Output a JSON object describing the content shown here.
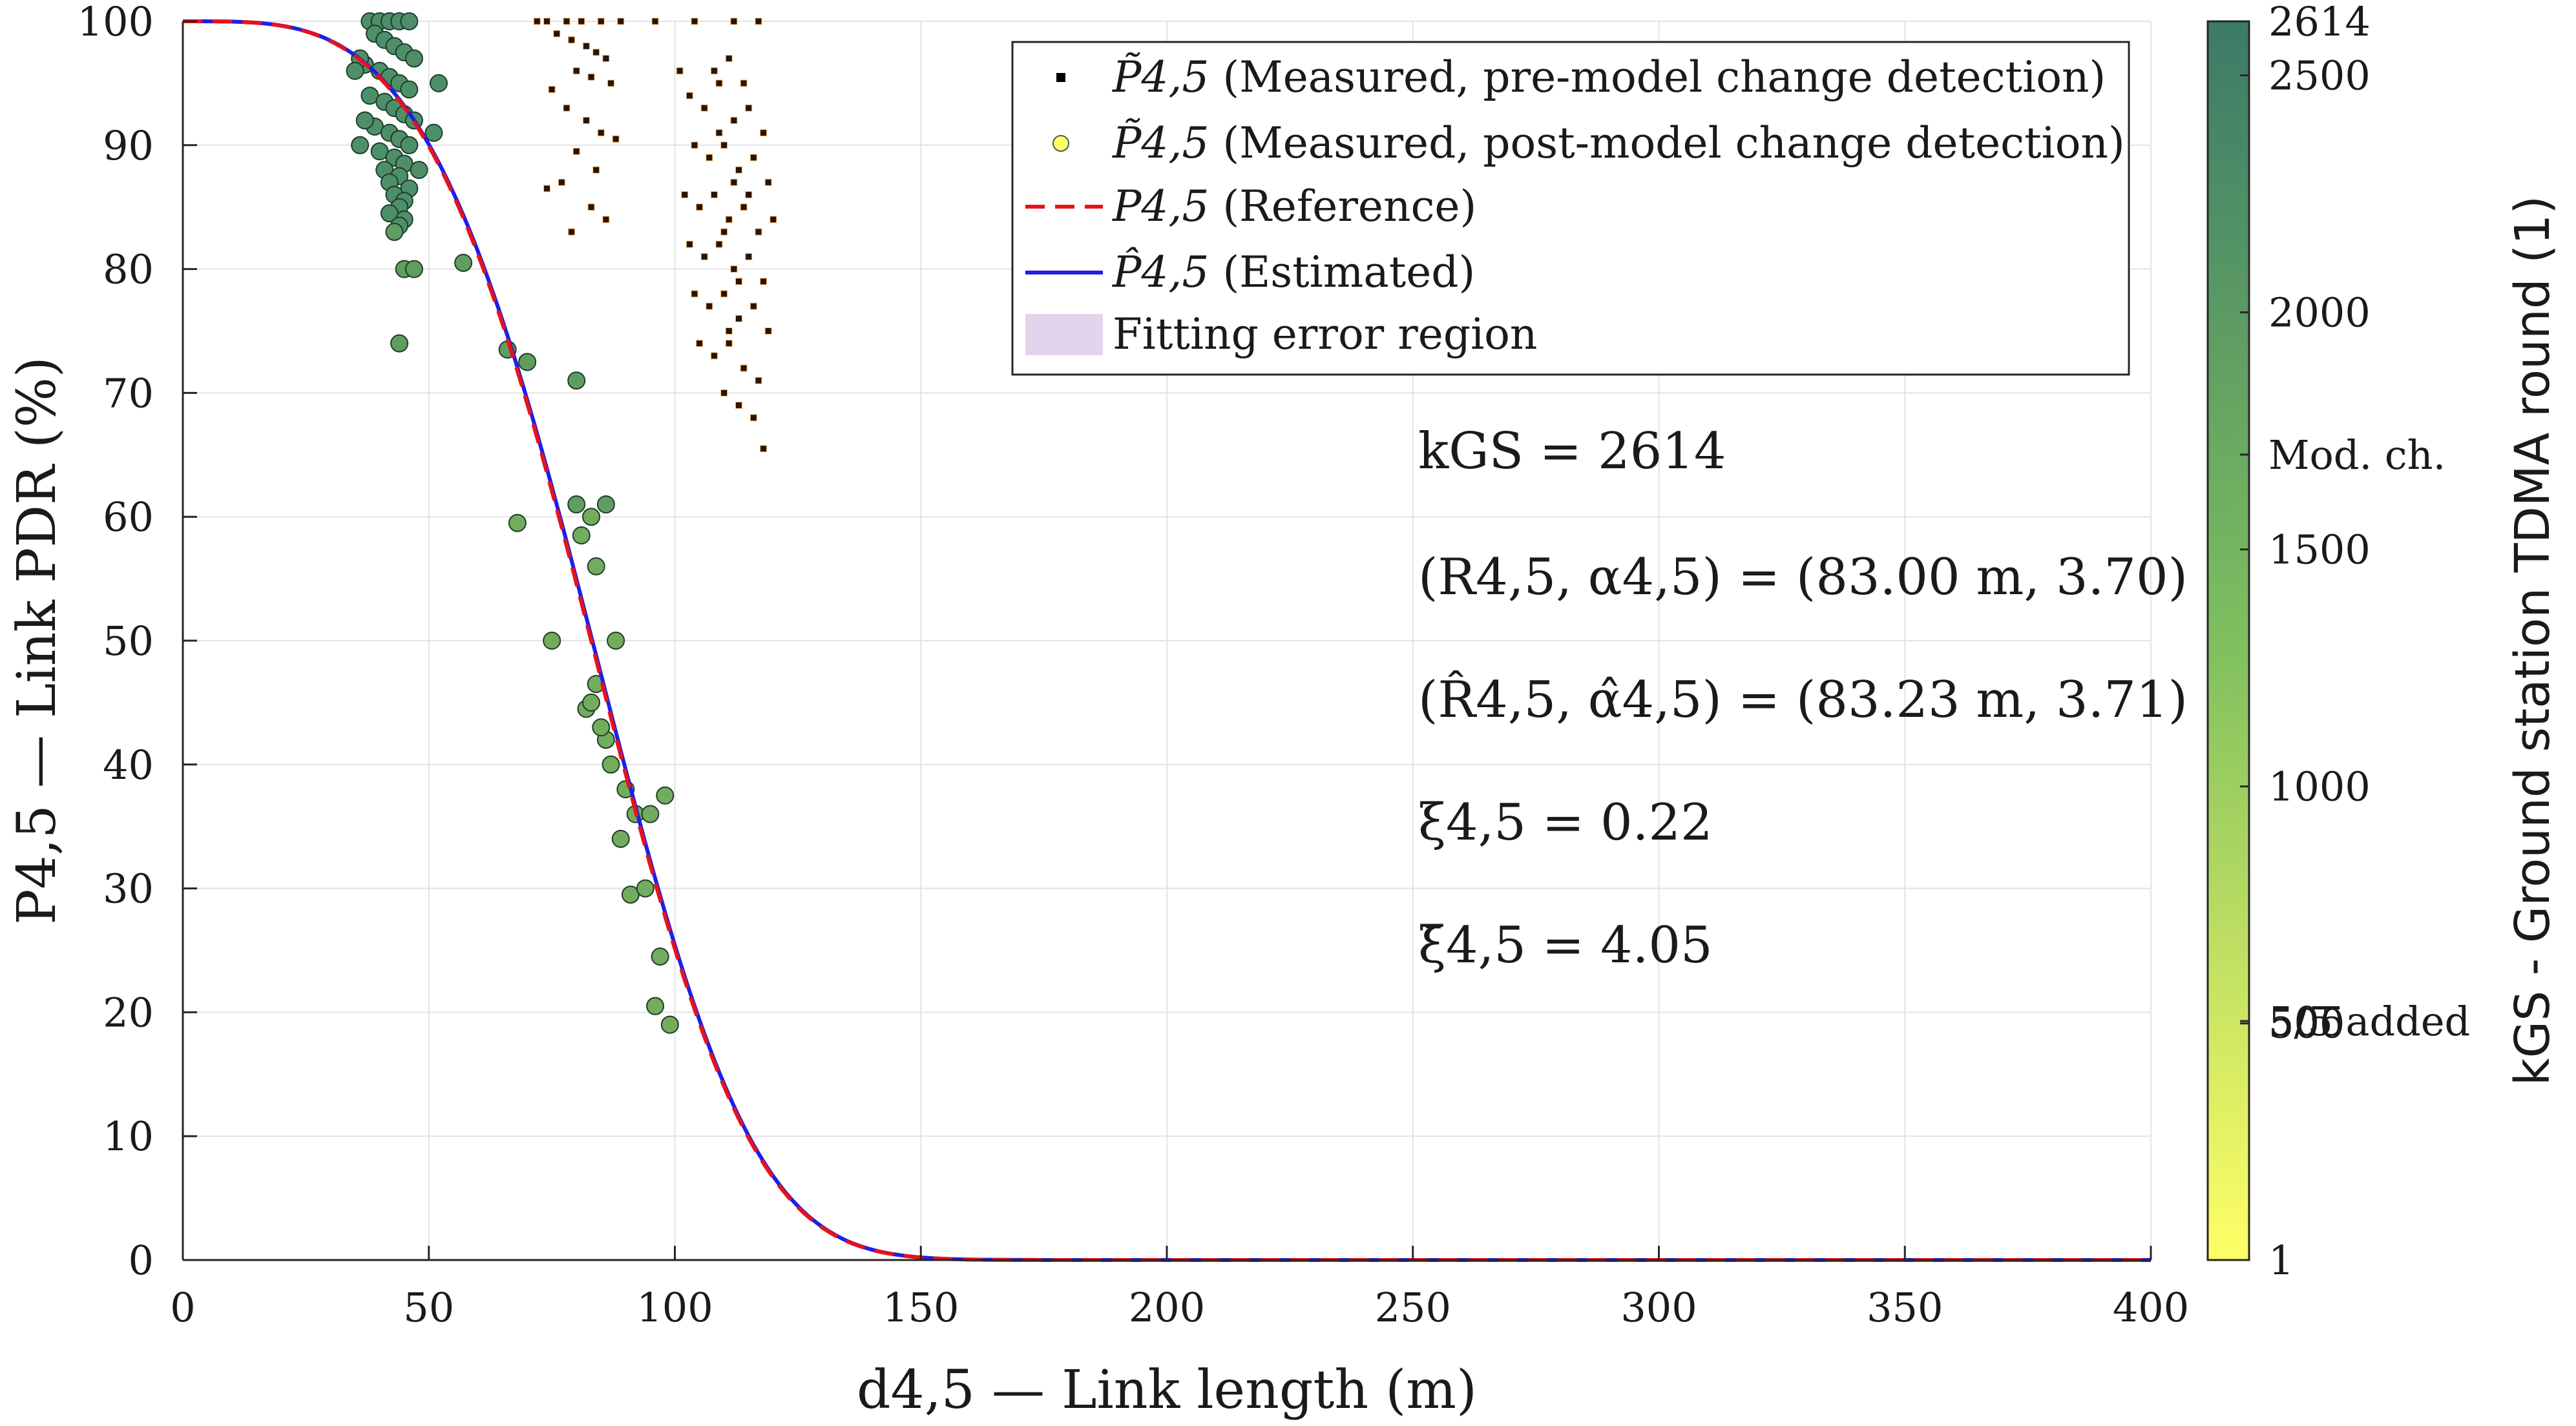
{
  "chart_data": {
    "type": "scatter",
    "xlabel": "d4,5 — Link length (m)",
    "ylabel": "P4,5 — Link PDR (%)",
    "xlim": [
      0,
      400
    ],
    "ylim": [
      0,
      100
    ],
    "xticks": [
      0,
      50,
      100,
      150,
      200,
      250,
      300,
      350,
      400
    ],
    "yticks": [
      0,
      10,
      20,
      30,
      40,
      50,
      60,
      70,
      80,
      90,
      100
    ],
    "grid": true,
    "legend_placement": "top-right",
    "legend": [
      {
        "symbol": "P̃4,5",
        "text": "(Measured, pre-model change detection)",
        "marker": "black-square"
      },
      {
        "symbol": "P̃4,5",
        "text": "(Measured, post-model change detection)",
        "marker": "yellow-circle"
      },
      {
        "symbol": "P4,5",
        "text": "(Reference)",
        "marker": "red-dashed-line"
      },
      {
        "symbol": "P̂4,5",
        "text": "(Estimated)",
        "marker": "blue-solid-line"
      },
      {
        "symbol": "",
        "text": "Fitting error region",
        "marker": "lavender-patch"
      }
    ],
    "annotations": [
      "kGS = 2614",
      "(R4,5, α4,5) = (83.00 m, 3.70)",
      "(R̂4,5, α̂4,5) = (83.23 m, 3.71)",
      "ξ4,5 = 0.22",
      "ξ̄4,5 = 4.05"
    ],
    "curves": {
      "reference": {
        "R": 83.0,
        "alpha": 3.7,
        "color": "#e8121a",
        "style": "dashed"
      },
      "estimated": {
        "R": 83.23,
        "alpha": 3.71,
        "color": "#1f1fe6",
        "style": "solid"
      }
    },
    "series": [
      {
        "marker": "black-square",
        "points": [
          [
            72,
            100
          ],
          [
            74,
            100
          ],
          [
            78,
            100
          ],
          [
            81,
            100
          ],
          [
            85,
            100
          ],
          [
            89,
            100
          ],
          [
            96,
            100
          ],
          [
            104,
            100
          ],
          [
            112,
            100
          ],
          [
            117,
            100
          ],
          [
            76,
            99
          ],
          [
            79,
            98.5
          ],
          [
            82,
            98
          ],
          [
            84,
            97.5
          ],
          [
            86,
            97
          ],
          [
            80,
            96
          ],
          [
            83,
            95.5
          ],
          [
            87,
            95
          ],
          [
            75,
            94.5
          ],
          [
            78,
            93
          ],
          [
            82,
            92
          ],
          [
            85,
            91
          ],
          [
            88,
            90.5
          ],
          [
            80,
            89.5
          ],
          [
            84,
            88
          ],
          [
            77,
            87
          ],
          [
            74,
            86.5
          ],
          [
            83,
            85
          ],
          [
            86,
            84
          ],
          [
            79,
            83
          ],
          [
            101,
            96
          ],
          [
            103,
            94
          ],
          [
            106,
            93
          ],
          [
            109,
            95
          ],
          [
            112,
            92
          ],
          [
            115,
            93
          ],
          [
            118,
            91
          ],
          [
            104,
            90
          ],
          [
            107,
            89
          ],
          [
            110,
            90
          ],
          [
            113,
            88
          ],
          [
            116,
            89
          ],
          [
            119,
            87
          ],
          [
            102,
            86
          ],
          [
            105,
            85
          ],
          [
            108,
            86
          ],
          [
            111,
            84
          ],
          [
            114,
            85
          ],
          [
            117,
            83
          ],
          [
            120,
            84
          ],
          [
            103,
            82
          ],
          [
            106,
            81
          ],
          [
            109,
            82
          ],
          [
            112,
            80
          ],
          [
            115,
            81
          ],
          [
            118,
            79
          ],
          [
            104,
            78
          ],
          [
            107,
            77
          ],
          [
            110,
            78
          ],
          [
            113,
            76
          ],
          [
            116,
            77
          ],
          [
            119,
            75
          ],
          [
            105,
            74
          ],
          [
            108,
            73
          ],
          [
            111,
            74
          ],
          [
            114,
            72
          ],
          [
            117,
            71
          ],
          [
            110,
            70
          ],
          [
            113,
            69
          ],
          [
            116,
            68
          ],
          [
            118,
            65.5
          ],
          [
            108,
            96
          ],
          [
            111,
            97
          ],
          [
            114,
            95
          ],
          [
            109,
            91
          ],
          [
            112,
            87
          ],
          [
            115,
            86
          ],
          [
            110,
            83
          ],
          [
            113,
            79
          ],
          [
            111,
            75
          ]
        ]
      },
      {
        "marker": "green-circle",
        "points": [
          [
            38,
            100
          ],
          [
            40,
            100
          ],
          [
            42,
            100
          ],
          [
            44,
            100
          ],
          [
            46,
            100
          ],
          [
            39,
            99
          ],
          [
            41,
            98.5
          ],
          [
            43,
            98
          ],
          [
            45,
            97.5
          ],
          [
            47,
            97
          ],
          [
            37,
            96.5
          ],
          [
            40,
            96
          ],
          [
            42,
            95.5
          ],
          [
            44,
            95
          ],
          [
            46,
            94.5
          ],
          [
            38,
            94
          ],
          [
            41,
            93.5
          ],
          [
            43,
            93
          ],
          [
            45,
            92.5
          ],
          [
            47,
            92
          ],
          [
            39,
            91.5
          ],
          [
            42,
            91
          ],
          [
            44,
            90.5
          ],
          [
            46,
            90
          ],
          [
            40,
            89.5
          ],
          [
            43,
            89
          ],
          [
            45,
            88.5
          ],
          [
            41,
            88
          ],
          [
            44,
            87.5
          ],
          [
            42,
            87
          ],
          [
            46,
            86.5
          ],
          [
            43,
            86
          ],
          [
            45,
            85.5
          ],
          [
            44,
            85
          ],
          [
            42,
            84.5
          ],
          [
            45,
            84
          ],
          [
            44,
            83.5
          ],
          [
            43,
            83
          ],
          [
            36,
            97
          ],
          [
            35,
            96
          ],
          [
            37,
            92
          ],
          [
            36,
            90
          ],
          [
            52,
            95
          ],
          [
            51,
            91
          ],
          [
            48,
            88
          ],
          [
            45,
            80
          ],
          [
            47,
            80
          ],
          [
            44,
            74
          ],
          [
            57,
            80.5
          ],
          [
            66,
            73.5
          ],
          [
            70,
            72.5
          ],
          [
            80,
            71
          ],
          [
            68,
            59.5
          ],
          [
            80,
            61
          ],
          [
            83,
            60
          ],
          [
            86,
            61
          ],
          [
            81,
            58.5
          ],
          [
            84,
            56
          ],
          [
            75,
            50
          ],
          [
            88,
            50
          ],
          [
            84,
            46.5
          ],
          [
            82,
            44.5
          ],
          [
            86,
            42
          ],
          [
            87,
            40
          ],
          [
            90,
            38
          ],
          [
            92,
            36
          ],
          [
            95,
            36
          ],
          [
            98,
            37.5
          ],
          [
            91,
            29.5
          ],
          [
            94,
            30
          ],
          [
            97,
            24.5
          ],
          [
            96,
            20.5
          ],
          [
            99,
            19
          ],
          [
            83,
            45
          ],
          [
            85,
            43
          ],
          [
            89,
            34
          ]
        ]
      }
    ],
    "colorbar": {
      "label": "kGS - Ground station TDMA round (1)",
      "range": [
        1,
        2614
      ],
      "ticks": [
        1,
        500,
        1000,
        1500,
        2000,
        2500,
        2614
      ],
      "tick_labels": [
        "1",
        "500",
        "1000",
        "1500",
        "2000",
        "2500",
        "2614"
      ],
      "markers": [
        {
          "value": 505,
          "label": "505"
        },
        {
          "value": 505,
          "label": "5/5 added"
        },
        {
          "value": 1700,
          "label": "Mod. ch."
        }
      ],
      "color_low": "#ffff66",
      "color_mid": "#7fbf5f",
      "color_high": "#3b7a68"
    }
  }
}
